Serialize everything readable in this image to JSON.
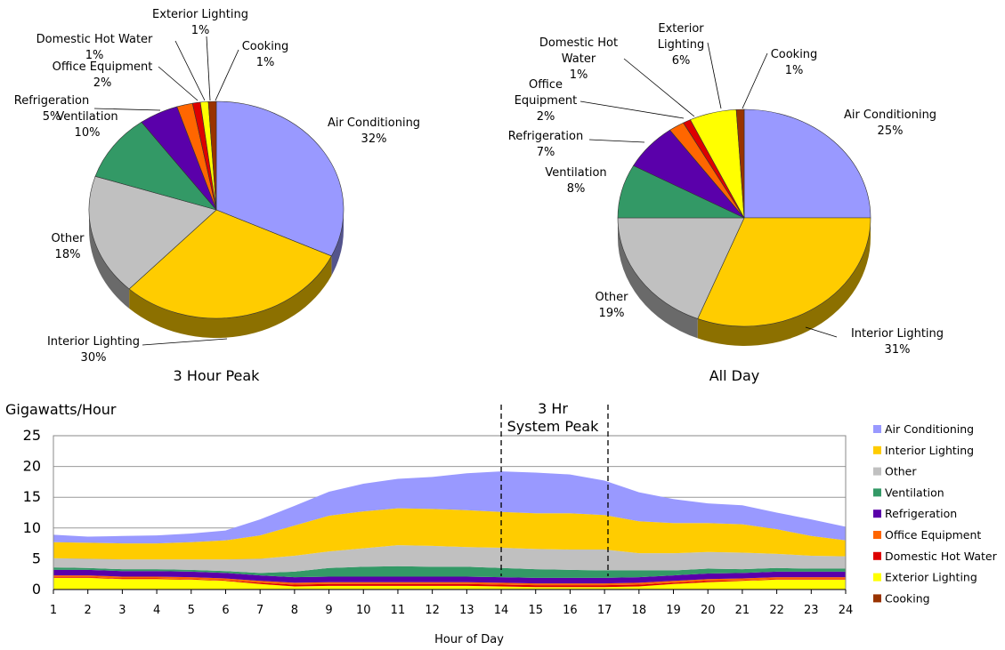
{
  "chart_data": [
    {
      "type": "pie",
      "title": "3 Hour Peak",
      "slices": [
        {
          "label": "Air Conditioning",
          "pct_label": "32%",
          "value": 32,
          "color": "#9999ff"
        },
        {
          "label": "Interior Lighting",
          "pct_label": "30%",
          "value": 30,
          "color": "#ffcc00"
        },
        {
          "label": "Other",
          "pct_label": "18%",
          "value": 18,
          "color": "#c0c0c0"
        },
        {
          "label": "Ventilation",
          "pct_label": "10%",
          "value": 10,
          "color": "#339966"
        },
        {
          "label": "Refrigeration",
          "pct_label": "5%",
          "value": 5,
          "color": "#5a00aa"
        },
        {
          "label": "Office Equipment",
          "pct_label": "2%",
          "value": 2,
          "color": "#ff6600"
        },
        {
          "label": "Domestic Hot Water",
          "pct_label": "1%",
          "value": 1,
          "color": "#dd0000"
        },
        {
          "label": "Exterior Lighting",
          "pct_label": "1%",
          "value": 1,
          "color": "#ffff00"
        },
        {
          "label": "Cooking",
          "pct_label": "1%",
          "value": 1,
          "color": "#993300"
        }
      ]
    },
    {
      "type": "pie",
      "title": "All Day",
      "slices": [
        {
          "label": "Air Conditioning",
          "pct_label": "25%",
          "value": 25,
          "color": "#9999ff"
        },
        {
          "label": "Interior Lighting",
          "pct_label": "31%",
          "value": 31,
          "color": "#ffcc00"
        },
        {
          "label": "Other",
          "pct_label": "19%",
          "value": 19,
          "color": "#c0c0c0"
        },
        {
          "label": "Ventilation",
          "pct_label": "8%",
          "value": 8,
          "color": "#339966"
        },
        {
          "label": "Refrigeration",
          "pct_label": "7%",
          "value": 7,
          "color": "#5a00aa"
        },
        {
          "label": "Office Equipment",
          "pct_label": "2%",
          "value": 2,
          "color": "#ff6600"
        },
        {
          "label": "Domestic Hot Water",
          "pct_label": "1%",
          "value": 1,
          "color": "#dd0000"
        },
        {
          "label": "Exterior Lighting",
          "pct_label": "6%",
          "value": 6,
          "color": "#ffff00"
        },
        {
          "label": "Cooking",
          "pct_label": "1%",
          "value": 1,
          "color": "#993300"
        }
      ]
    },
    {
      "type": "area",
      "stacked": true,
      "ylabel": "Gigawatts/Hour",
      "xlabel": "Hour of Day",
      "x": [
        1,
        2,
        3,
        4,
        5,
        6,
        7,
        8,
        9,
        10,
        11,
        12,
        13,
        14,
        15,
        16,
        17,
        18,
        19,
        20,
        21,
        22,
        23,
        24
      ],
      "ylim": [
        0,
        25
      ],
      "yticks": [
        0,
        5,
        10,
        15,
        20,
        25
      ],
      "grid": true,
      "legend": "right",
      "annotation": {
        "lines": [
          "3 Hr",
          "System Peak"
        ],
        "x_start": 14,
        "x_end": 17.1
      },
      "series": [
        {
          "name": "Cooking",
          "color": "#993300",
          "values": [
            0.1,
            0.1,
            0.1,
            0.1,
            0.1,
            0.1,
            0.1,
            0.1,
            0.1,
            0.1,
            0.1,
            0.1,
            0.1,
            0.1,
            0.1,
            0.1,
            0.1,
            0.1,
            0.1,
            0.1,
            0.1,
            0.1,
            0.1,
            0.1
          ]
        },
        {
          "name": "Exterior Lighting",
          "color": "#ffff00",
          "values": [
            1.8,
            1.8,
            1.6,
            1.6,
            1.5,
            1.3,
            0.8,
            0.4,
            0.5,
            0.5,
            0.5,
            0.5,
            0.5,
            0.4,
            0.3,
            0.3,
            0.3,
            0.4,
            0.8,
            1.1,
            1.3,
            1.5,
            1.5,
            1.5
          ]
        },
        {
          "name": "Domestic Hot Water",
          "color": "#dd0000",
          "values": [
            0.1,
            0.1,
            0.1,
            0.1,
            0.1,
            0.1,
            0.2,
            0.3,
            0.3,
            0.3,
            0.3,
            0.3,
            0.3,
            0.3,
            0.3,
            0.3,
            0.3,
            0.3,
            0.2,
            0.2,
            0.1,
            0.1,
            0.1,
            0.1
          ]
        },
        {
          "name": "Office Equipment",
          "color": "#ff6600",
          "values": [
            0.3,
            0.3,
            0.3,
            0.3,
            0.3,
            0.3,
            0.3,
            0.3,
            0.3,
            0.3,
            0.3,
            0.3,
            0.3,
            0.3,
            0.3,
            0.3,
            0.3,
            0.3,
            0.3,
            0.3,
            0.3,
            0.3,
            0.3,
            0.3
          ]
        },
        {
          "name": "Refrigeration",
          "color": "#5a00aa",
          "values": [
            0.9,
            0.9,
            0.9,
            0.9,
            0.9,
            0.9,
            0.9,
            0.9,
            0.9,
            0.9,
            0.9,
            0.9,
            0.9,
            0.9,
            0.9,
            0.9,
            0.9,
            0.9,
            0.9,
            0.9,
            0.9,
            0.9,
            0.9,
            0.9
          ]
        },
        {
          "name": "Ventilation",
          "color": "#339966",
          "values": [
            0.4,
            0.3,
            0.3,
            0.3,
            0.3,
            0.3,
            0.4,
            0.9,
            1.4,
            1.6,
            1.7,
            1.6,
            1.6,
            1.5,
            1.4,
            1.3,
            1.2,
            1.1,
            0.8,
            0.8,
            0.6,
            0.6,
            0.5,
            0.5
          ]
        },
        {
          "name": "Other",
          "color": "#c0c0c0",
          "values": [
            1.5,
            1.5,
            1.6,
            1.6,
            1.7,
            1.9,
            2.3,
            2.6,
            2.7,
            3.0,
            3.4,
            3.4,
            3.2,
            3.3,
            3.3,
            3.3,
            3.4,
            2.8,
            2.8,
            2.7,
            2.7,
            2.3,
            2.1,
            2.0
          ]
        },
        {
          "name": "Interior Lighting",
          "color": "#ffcc00",
          "values": [
            2.6,
            2.6,
            2.6,
            2.6,
            2.8,
            3.1,
            3.8,
            4.9,
            5.8,
            6.0,
            6.0,
            6.0,
            6.0,
            5.8,
            5.8,
            5.9,
            5.6,
            5.2,
            4.9,
            4.7,
            4.6,
            4.0,
            3.2,
            2.6
          ]
        },
        {
          "name": "Air Conditioning",
          "color": "#9999ff",
          "values": [
            1.2,
            1.0,
            1.2,
            1.3,
            1.4,
            1.6,
            2.6,
            3.2,
            3.9,
            4.5,
            4.8,
            5.2,
            6.0,
            6.6,
            6.6,
            6.3,
            5.6,
            4.7,
            3.9,
            3.2,
            3.1,
            2.7,
            2.7,
            2.2
          ]
        }
      ]
    }
  ]
}
